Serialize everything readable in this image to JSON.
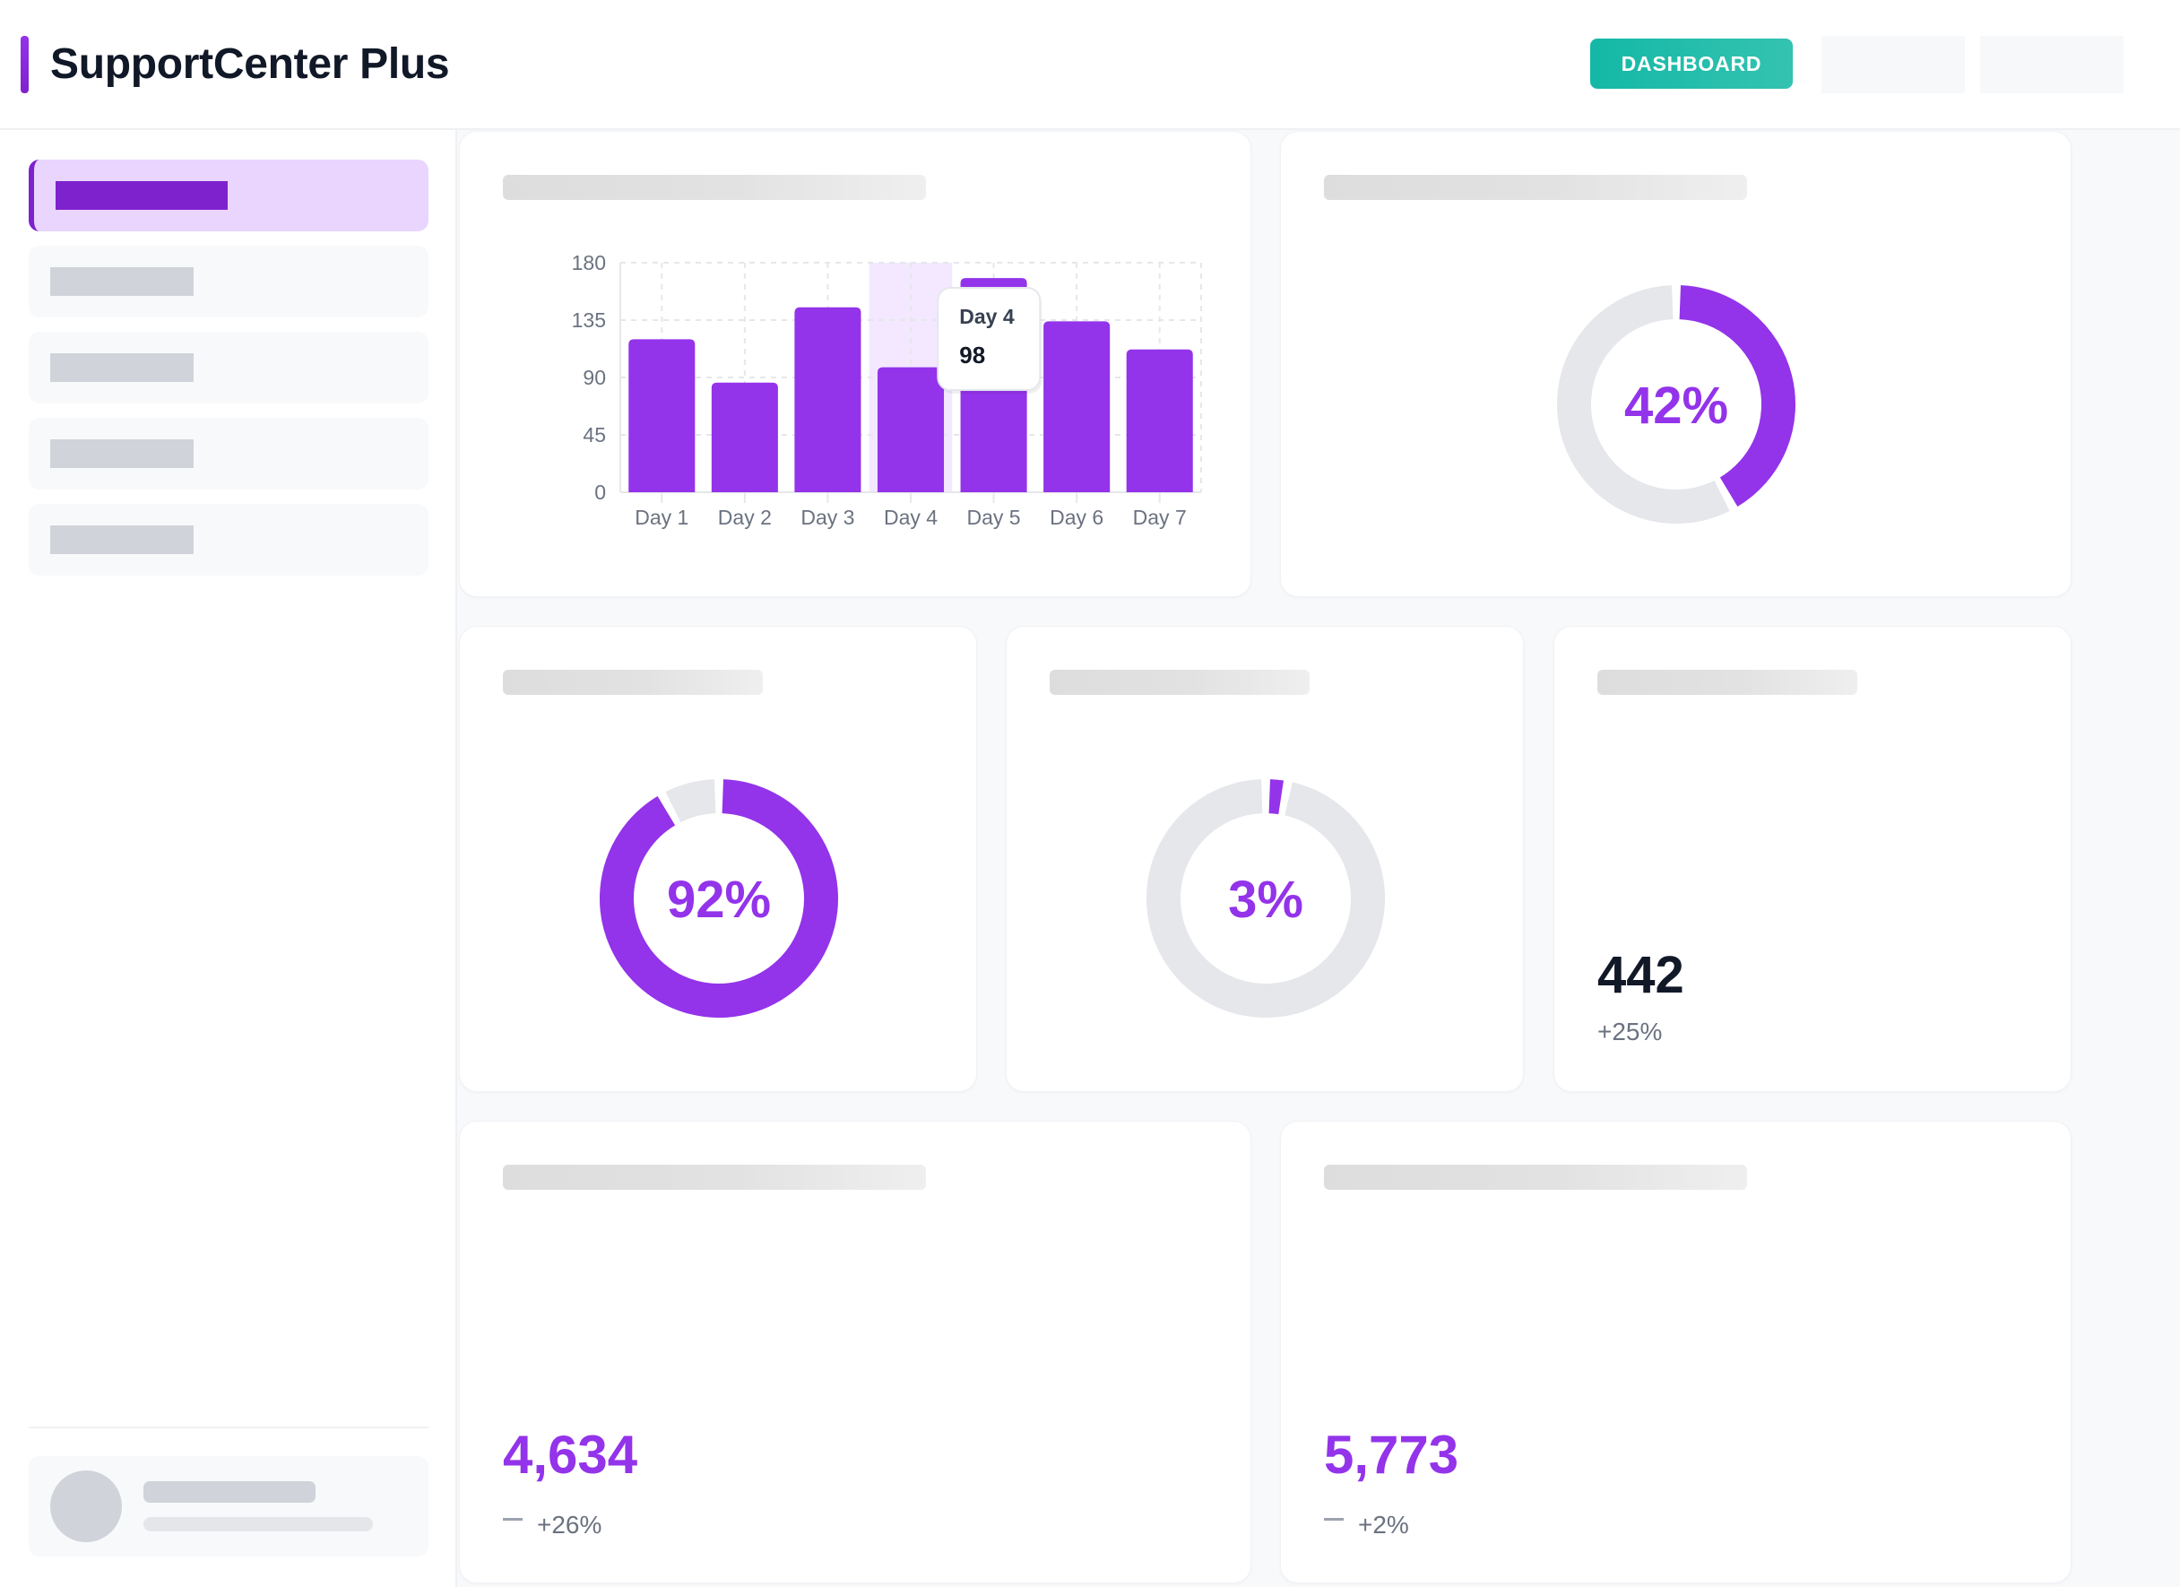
{
  "header": {
    "title": "SupportCenter Plus",
    "dashboard_button": "DASHBOARD"
  },
  "colors": {
    "accent": "#9333ea",
    "accent_dark": "#7e22ce",
    "teal": "#14b8a6",
    "track": "#e5e7eb",
    "text_dark": "#111827",
    "text_muted": "#6b7280"
  },
  "sidebar": {
    "items": [
      {
        "state": "active"
      },
      {
        "state": "inactive"
      },
      {
        "state": "inactive"
      },
      {
        "state": "inactive"
      },
      {
        "state": "inactive"
      }
    ]
  },
  "cards": {
    "donut_main": {
      "value": 42,
      "label": "42%"
    },
    "donut_a": {
      "value": 92,
      "label": "92%"
    },
    "donut_b": {
      "value": 3,
      "label": "3%"
    },
    "stat": {
      "value": "442",
      "change": "+25%"
    },
    "kpi_a": {
      "value": "4,634",
      "change": "+26%",
      "change_icon": "dash-icon"
    },
    "kpi_b": {
      "value": "5,773",
      "change": "+2%",
      "change_icon": "dash-icon"
    }
  },
  "chart_data": {
    "type": "bar",
    "categories": [
      "Day 1",
      "Day 2",
      "Day 3",
      "Day 4",
      "Day 5",
      "Day 6",
      "Day 7"
    ],
    "values": [
      120,
      86,
      145,
      98,
      168,
      134,
      112
    ],
    "ylim": [
      0,
      180
    ],
    "yticks": [
      0,
      45,
      90,
      135,
      180
    ],
    "title": "",
    "xlabel": "",
    "ylabel": "",
    "grid": true,
    "highlighted_category": "Day 4",
    "tooltip": {
      "label": "Day 4",
      "value": "98"
    }
  }
}
